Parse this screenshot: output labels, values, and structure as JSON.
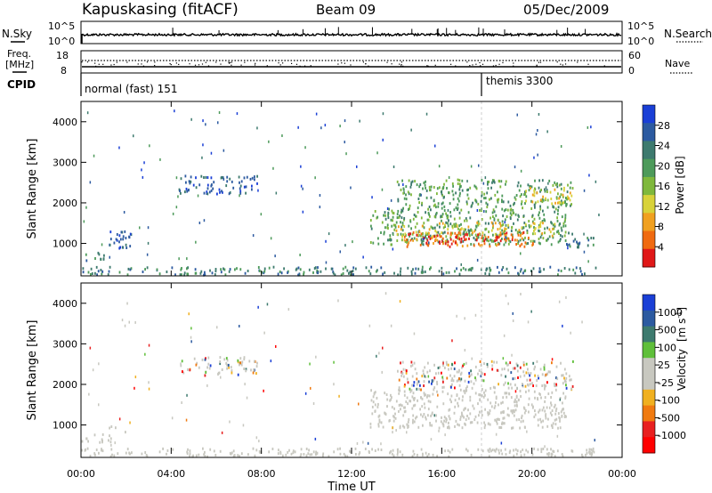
{
  "header": {
    "station": "Kapuskasing (fitACF)",
    "beam": "Beam 09",
    "date": "05/Dec/2009"
  },
  "noise_panel": {
    "left_label": "N.Sky",
    "right_label": "N.Search",
    "left_ticks": [
      "10^5",
      "10^0"
    ],
    "right_ticks": [
      "10^5",
      "10^0"
    ]
  },
  "freq_panel": {
    "left_label_1": "Freq.",
    "left_label_2": "[MHz]",
    "right_label": "Nave",
    "left_ticks": [
      "18",
      "8"
    ],
    "right_ticks": [
      "60",
      "0"
    ]
  },
  "cpid_panel": {
    "label": "CPID",
    "modes": [
      {
        "name": "normal (fast) 151",
        "start_hour": 0
      },
      {
        "name": "themis 3300",
        "start_hour": 18
      }
    ]
  },
  "colors": {
    "power_scale": [
      "#1a3fd6",
      "#2c5aa0",
      "#3d7a6e",
      "#4d9a5a",
      "#7fb83c",
      "#d8d23a",
      "#f0a020",
      "#f06a10",
      "#e01818"
    ],
    "velocity_scale": [
      "#1a3fd6",
      "#2c5aa0",
      "#3d7a6e",
      "#5fbf3a",
      "#c8c8c0",
      "#c8c8c0",
      "#f0b020",
      "#f07a10",
      "#e82020",
      "#ff0000"
    ],
    "ground_scatter": "#c8c8c0"
  },
  "chart_data": [
    {
      "type": "heatmap",
      "name_panel": "power",
      "ylabel": "Slant Range [km]",
      "ylim": [
        200,
        4500
      ],
      "y_ticks": [
        "1000",
        "2000",
        "3000",
        "4000"
      ],
      "y_tick_values": [
        1000,
        2000,
        3000,
        4000
      ],
      "colorbar": {
        "label": "Power [dB]",
        "ticks": [
          "4",
          "8",
          "12",
          "16",
          "20",
          "24",
          "28"
        ]
      },
      "regions": [
        {
          "t0": 0.0,
          "t1": 1.3,
          "r0": 600,
          "r1": 800,
          "level": 2
        },
        {
          "t0": 1.2,
          "t1": 2.2,
          "r0": 900,
          "r1": 1350,
          "level": 1
        },
        {
          "t0": 4.3,
          "t1": 7.8,
          "r0": 2250,
          "r1": 2700,
          "level": 1
        },
        {
          "t0": 12.8,
          "t1": 21.5,
          "r0": 1000,
          "r1": 1900,
          "level": 3
        },
        {
          "t0": 13.8,
          "t1": 21.0,
          "r0": 1200,
          "r1": 1550,
          "level": 5
        },
        {
          "t0": 14.3,
          "t1": 20.3,
          "r0": 950,
          "r1": 1300,
          "level": 7
        },
        {
          "t0": 15.0,
          "t1": 18.5,
          "r0": 1000,
          "r1": 1200,
          "level": 8
        },
        {
          "t0": 14.0,
          "t1": 21.8,
          "r0": 1900,
          "r1": 2600,
          "level": 3
        },
        {
          "t0": 19.5,
          "t1": 21.8,
          "r0": 2000,
          "r1": 2400,
          "level": 5
        },
        {
          "t0": 21.5,
          "t1": 22.8,
          "r0": 900,
          "r1": 1300,
          "level": 2
        },
        {
          "t0": 0.0,
          "t1": 22.8,
          "r0": 250,
          "r1": 450,
          "level": 2
        }
      ]
    },
    {
      "type": "heatmap",
      "name_panel": "velocity",
      "ylabel": "Slant Range [km]",
      "xlabel": "Time UT",
      "ylim": [
        200,
        4500
      ],
      "y_ticks": [
        "1000",
        "2000",
        "3000",
        "4000"
      ],
      "y_tick_values": [
        1000,
        2000,
        3000,
        4000
      ],
      "x_ticks": [
        "00:00",
        "04:00",
        "08:00",
        "12:00",
        "16:00",
        "20:00",
        "00:00"
      ],
      "x_tick_values": [
        0,
        4,
        8,
        12,
        16,
        20,
        24
      ],
      "xlim": [
        0,
        24
      ],
      "colorbar": {
        "label": "Velocity",
        "unit": "[m s",
        "unit_exp": "-1",
        "unit_close": "]",
        "ticks": [
          "1000",
          "500",
          "100",
          "25",
          "-25",
          "-100",
          "-500",
          "-1000"
        ]
      },
      "regions": [
        {
          "t0": 0.0,
          "t1": 1.3,
          "r0": 600,
          "r1": 800,
          "kind": "gs"
        },
        {
          "t0": 1.2,
          "t1": 2.2,
          "r0": 850,
          "r1": 1000,
          "kind": "gs"
        },
        {
          "t0": 12.8,
          "t1": 21.5,
          "r0": 950,
          "r1": 1900,
          "kind": "gs"
        },
        {
          "t0": 4.3,
          "t1": 7.8,
          "r0": 2250,
          "r1": 2700,
          "kind": "mixed"
        },
        {
          "t0": 14.0,
          "t1": 21.8,
          "r0": 1900,
          "r1": 2600,
          "kind": "mixed"
        },
        {
          "t0": 0.0,
          "t1": 22.8,
          "r0": 250,
          "r1": 450,
          "kind": "gs"
        }
      ]
    }
  ]
}
